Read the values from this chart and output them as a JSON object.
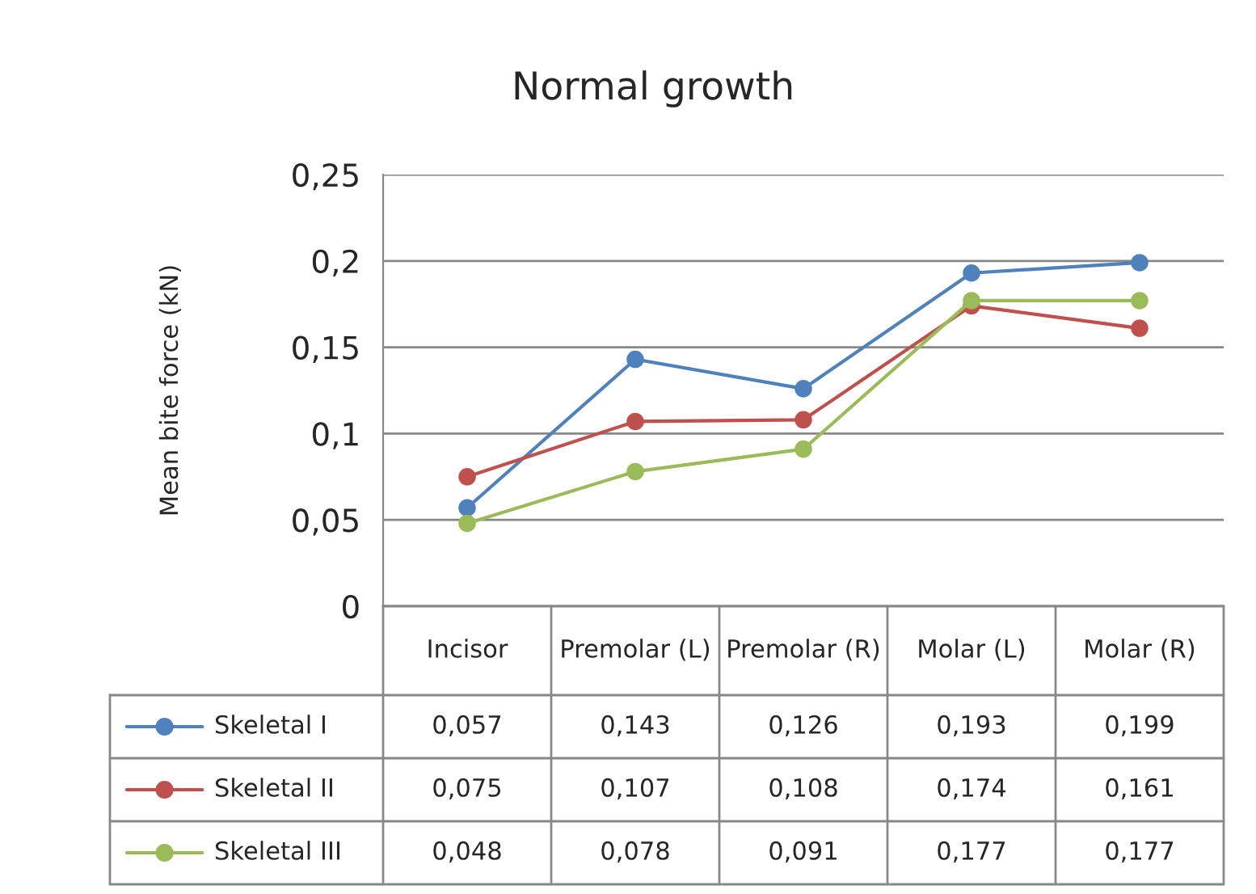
{
  "chart_data": {
    "type": "line",
    "title": "Normal growth",
    "ylabel": "Mean bite force (kN)",
    "categories": [
      "Incisor",
      "Premolar (L)",
      "Premolar (R)",
      "Molar (L)",
      "Molar (R)"
    ],
    "series": [
      {
        "name": "Skeletal I",
        "color": "#4f81bd",
        "values": [
          0.057,
          0.143,
          0.126,
          0.193,
          0.199
        ],
        "value_labels": [
          "0,057",
          "0,143",
          "0,126",
          "0,193",
          "0,199"
        ]
      },
      {
        "name": "Skeletal II",
        "color": "#c0504d",
        "values": [
          0.075,
          0.107,
          0.108,
          0.174,
          0.161
        ],
        "value_labels": [
          "0,075",
          "0,107",
          "0,108",
          "0,174",
          "0,161"
        ]
      },
      {
        "name": "Skeletal III",
        "color": "#9bbb59",
        "values": [
          0.048,
          0.078,
          0.091,
          0.177,
          0.177
        ],
        "value_labels": [
          "0,048",
          "0,078",
          "0,091",
          "0,177",
          "0,177"
        ]
      }
    ],
    "ylim": [
      0,
      0.25
    ],
    "yticks": [
      0,
      {
        "value": 0.05,
        "label": "0,05"
      },
      {
        "value": 0.1,
        "label": "0,1"
      },
      {
        "value": 0.15,
        "label": "0,15"
      },
      {
        "value": 0.2,
        "label": "0,2"
      },
      {
        "value": 0.25,
        "label": "0,25"
      }
    ],
    "grid": "y",
    "legend": "bottom left",
    "marker": "circle",
    "line_style": "solid"
  }
}
